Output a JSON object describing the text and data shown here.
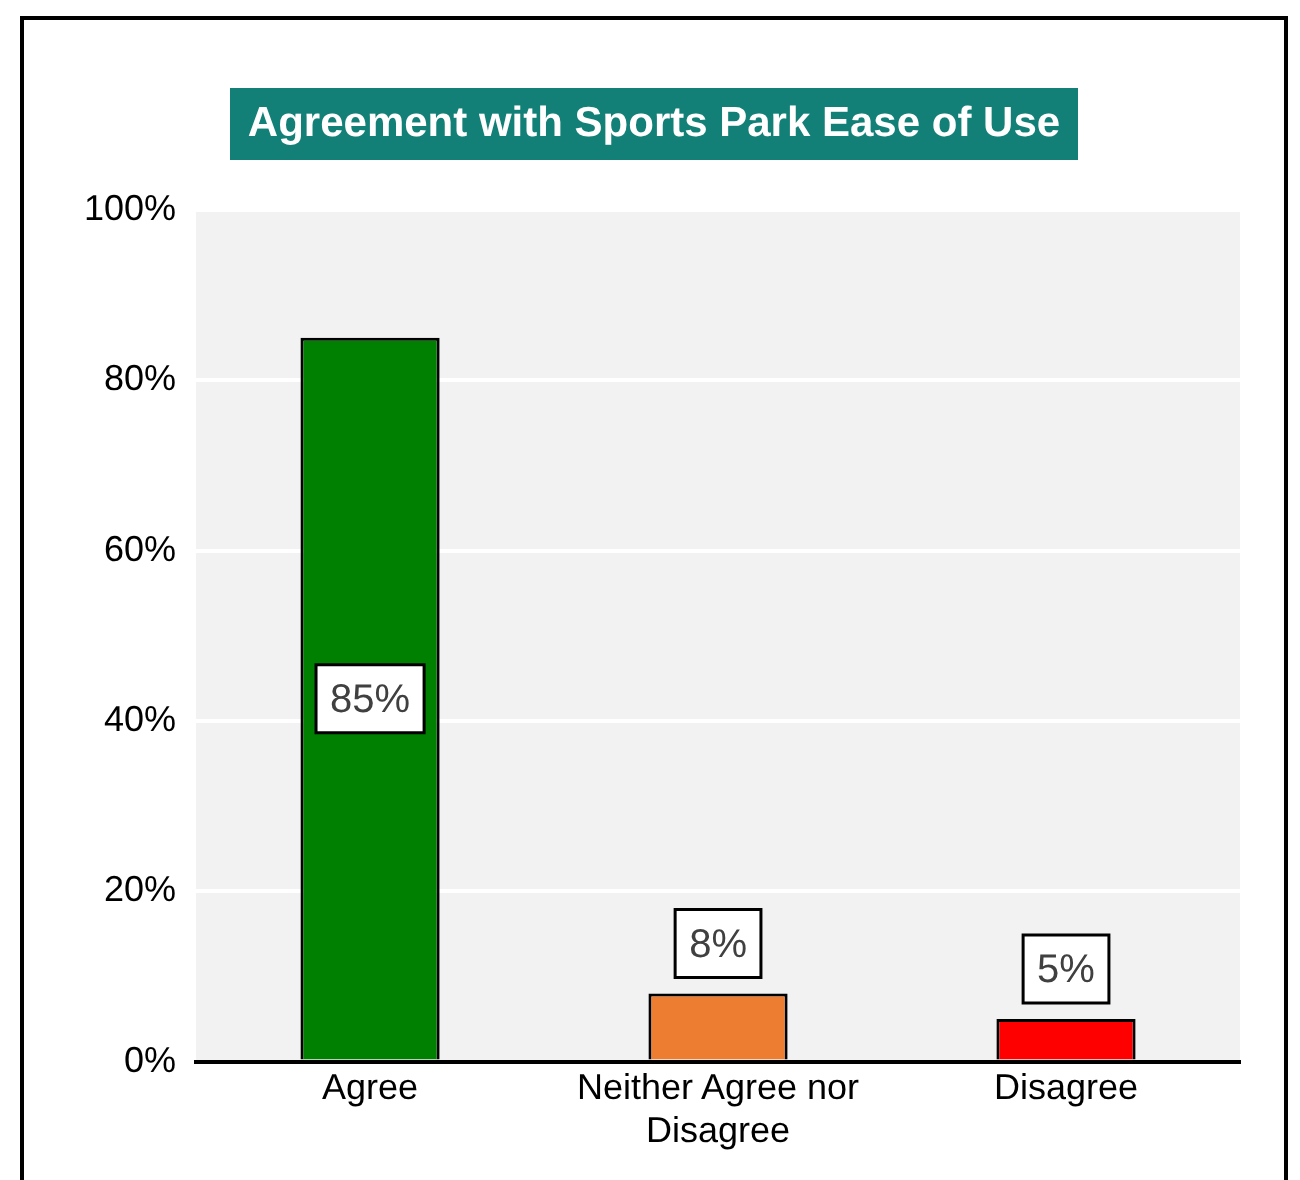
{
  "chart_data": {
    "type": "bar",
    "title": "Agreement with Sports Park Ease of Use",
    "categories": [
      "Agree",
      "Neither Agree nor Disagree",
      "Disagree"
    ],
    "values": [
      85,
      8,
      5
    ],
    "colors": [
      "#008000",
      "#ed7d31",
      "#ff0000"
    ],
    "value_labels": [
      "85%",
      "8%",
      "5%"
    ],
    "ylim": [
      0,
      100
    ],
    "yticks": [
      {
        "value": 0,
        "label": "0%"
      },
      {
        "value": 20,
        "label": "20%"
      },
      {
        "value": 40,
        "label": "40%"
      },
      {
        "value": 60,
        "label": "60%"
      },
      {
        "value": 80,
        "label": "80%"
      },
      {
        "value": 100,
        "label": "100%"
      }
    ],
    "grid": "y",
    "legend": false
  }
}
